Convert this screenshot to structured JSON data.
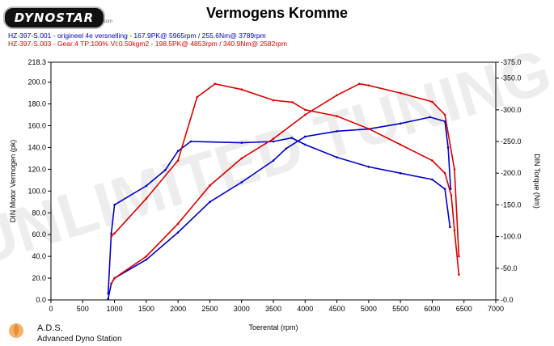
{
  "header": {
    "logo_text": "DYNOSTAR",
    "logo_sub": ".com",
    "title": "Vermogens Kromme"
  },
  "legend": [
    {
      "text": "HZ-397-S.001 - origineel 4e versnelling  - 167.9PK@ 5965rpm / 255.6Nm@ 3789rpm",
      "color": "#0000cc"
    },
    {
      "text": "HZ-397-S.003 - Gear:4 TP:100% VI:0.50kgm2   - 198.5PK@ 4853rpm / 340.9Nm@ 2582rpm",
      "color": "#dd0000"
    }
  ],
  "footer": {
    "brand": "A.D.S.",
    "subtitle": "Advanced Dyno Station"
  },
  "chart_data": {
    "type": "line",
    "xlabel": "Toerental (rpm)",
    "ylabel_left": "DIN Motor Vermogen (pk)",
    "ylabel_right": "DIN Torque (Nm)",
    "xlim": [
      0,
      7000
    ],
    "ylim_left": [
      0,
      218.3
    ],
    "ylim_right": [
      0,
      375
    ],
    "x_ticks": [
      "0",
      "500",
      "1000",
      "1500",
      "2000",
      "2500",
      "3000",
      "3500",
      "4000",
      "4500",
      "5000",
      "5500",
      "6000",
      "6500",
      "7000"
    ],
    "y_left_ticks": [
      "0.0",
      "20.0",
      "40.0",
      "60.0",
      "80.0",
      "100.0",
      "120.0",
      "140.0",
      "160.0",
      "180.0",
      "200.0",
      "218.3"
    ],
    "y_right_ticks": [
      "0.0",
      "50.0",
      "100.0",
      "150.0",
      "200.0",
      "250.0",
      "300.0",
      "350.0",
      "375.0"
    ],
    "grid": false,
    "series": [
      {
        "name": "HZ-397-S.001 - origineel 4e versnelling",
        "axis": "left",
        "color": "#0000cc",
        "quantity": "power",
        "x": [
          900,
          950,
          1000,
          1500,
          2000,
          2500,
          3000,
          3500,
          3700,
          4000,
          4500,
          5000,
          5500,
          5965,
          6200,
          6250,
          6290
        ],
        "y": [
          1,
          15,
          20,
          37,
          62,
          90,
          108,
          128,
          139,
          150,
          155,
          157,
          162,
          167.9,
          164,
          140,
          102
        ]
      },
      {
        "name": "HZ-397-S.001 - origineel 4e versnelling",
        "axis": "right",
        "color": "#0000cc",
        "quantity": "torque",
        "x": [
          900,
          950,
          1000,
          1500,
          1800,
          2000,
          2200,
          3000,
          3500,
          3789,
          4000,
          4500,
          5000,
          5500,
          6000,
          6200,
          6280
        ],
        "y": [
          10,
          105,
          150,
          180,
          205,
          235,
          250,
          248,
          250,
          255.6,
          245,
          225,
          210,
          200,
          190,
          175,
          115
        ]
      },
      {
        "name": "HZ-397-S.003 - Gear:4 TP:100% VI:0.50kgm2",
        "axis": "left",
        "color": "#dd0000",
        "quantity": "power",
        "x": [
          950,
          1000,
          1500,
          2000,
          2500,
          3000,
          3500,
          4000,
          4500,
          4853,
          5000,
          5500,
          6000,
          6200,
          6350,
          6420
        ],
        "y": [
          15,
          20,
          40,
          70,
          105,
          130,
          148,
          170,
          188,
          198.5,
          197,
          190,
          182,
          170,
          120,
          40
        ]
      },
      {
        "name": "HZ-397-S.003 - Gear:4 TP:100% VI:0.50kgm2",
        "axis": "right",
        "color": "#dd0000",
        "quantity": "torque",
        "x": [
          950,
          1000,
          1500,
          2000,
          2300,
          2582,
          3000,
          3500,
          3800,
          4000,
          4500,
          5000,
          5500,
          6000,
          6200,
          6300,
          6350,
          6420
        ],
        "y": [
          100,
          105,
          160,
          220,
          320,
          340.9,
          332,
          315,
          312,
          300,
          290,
          270,
          245,
          220,
          200,
          165,
          110,
          40
        ]
      }
    ]
  }
}
